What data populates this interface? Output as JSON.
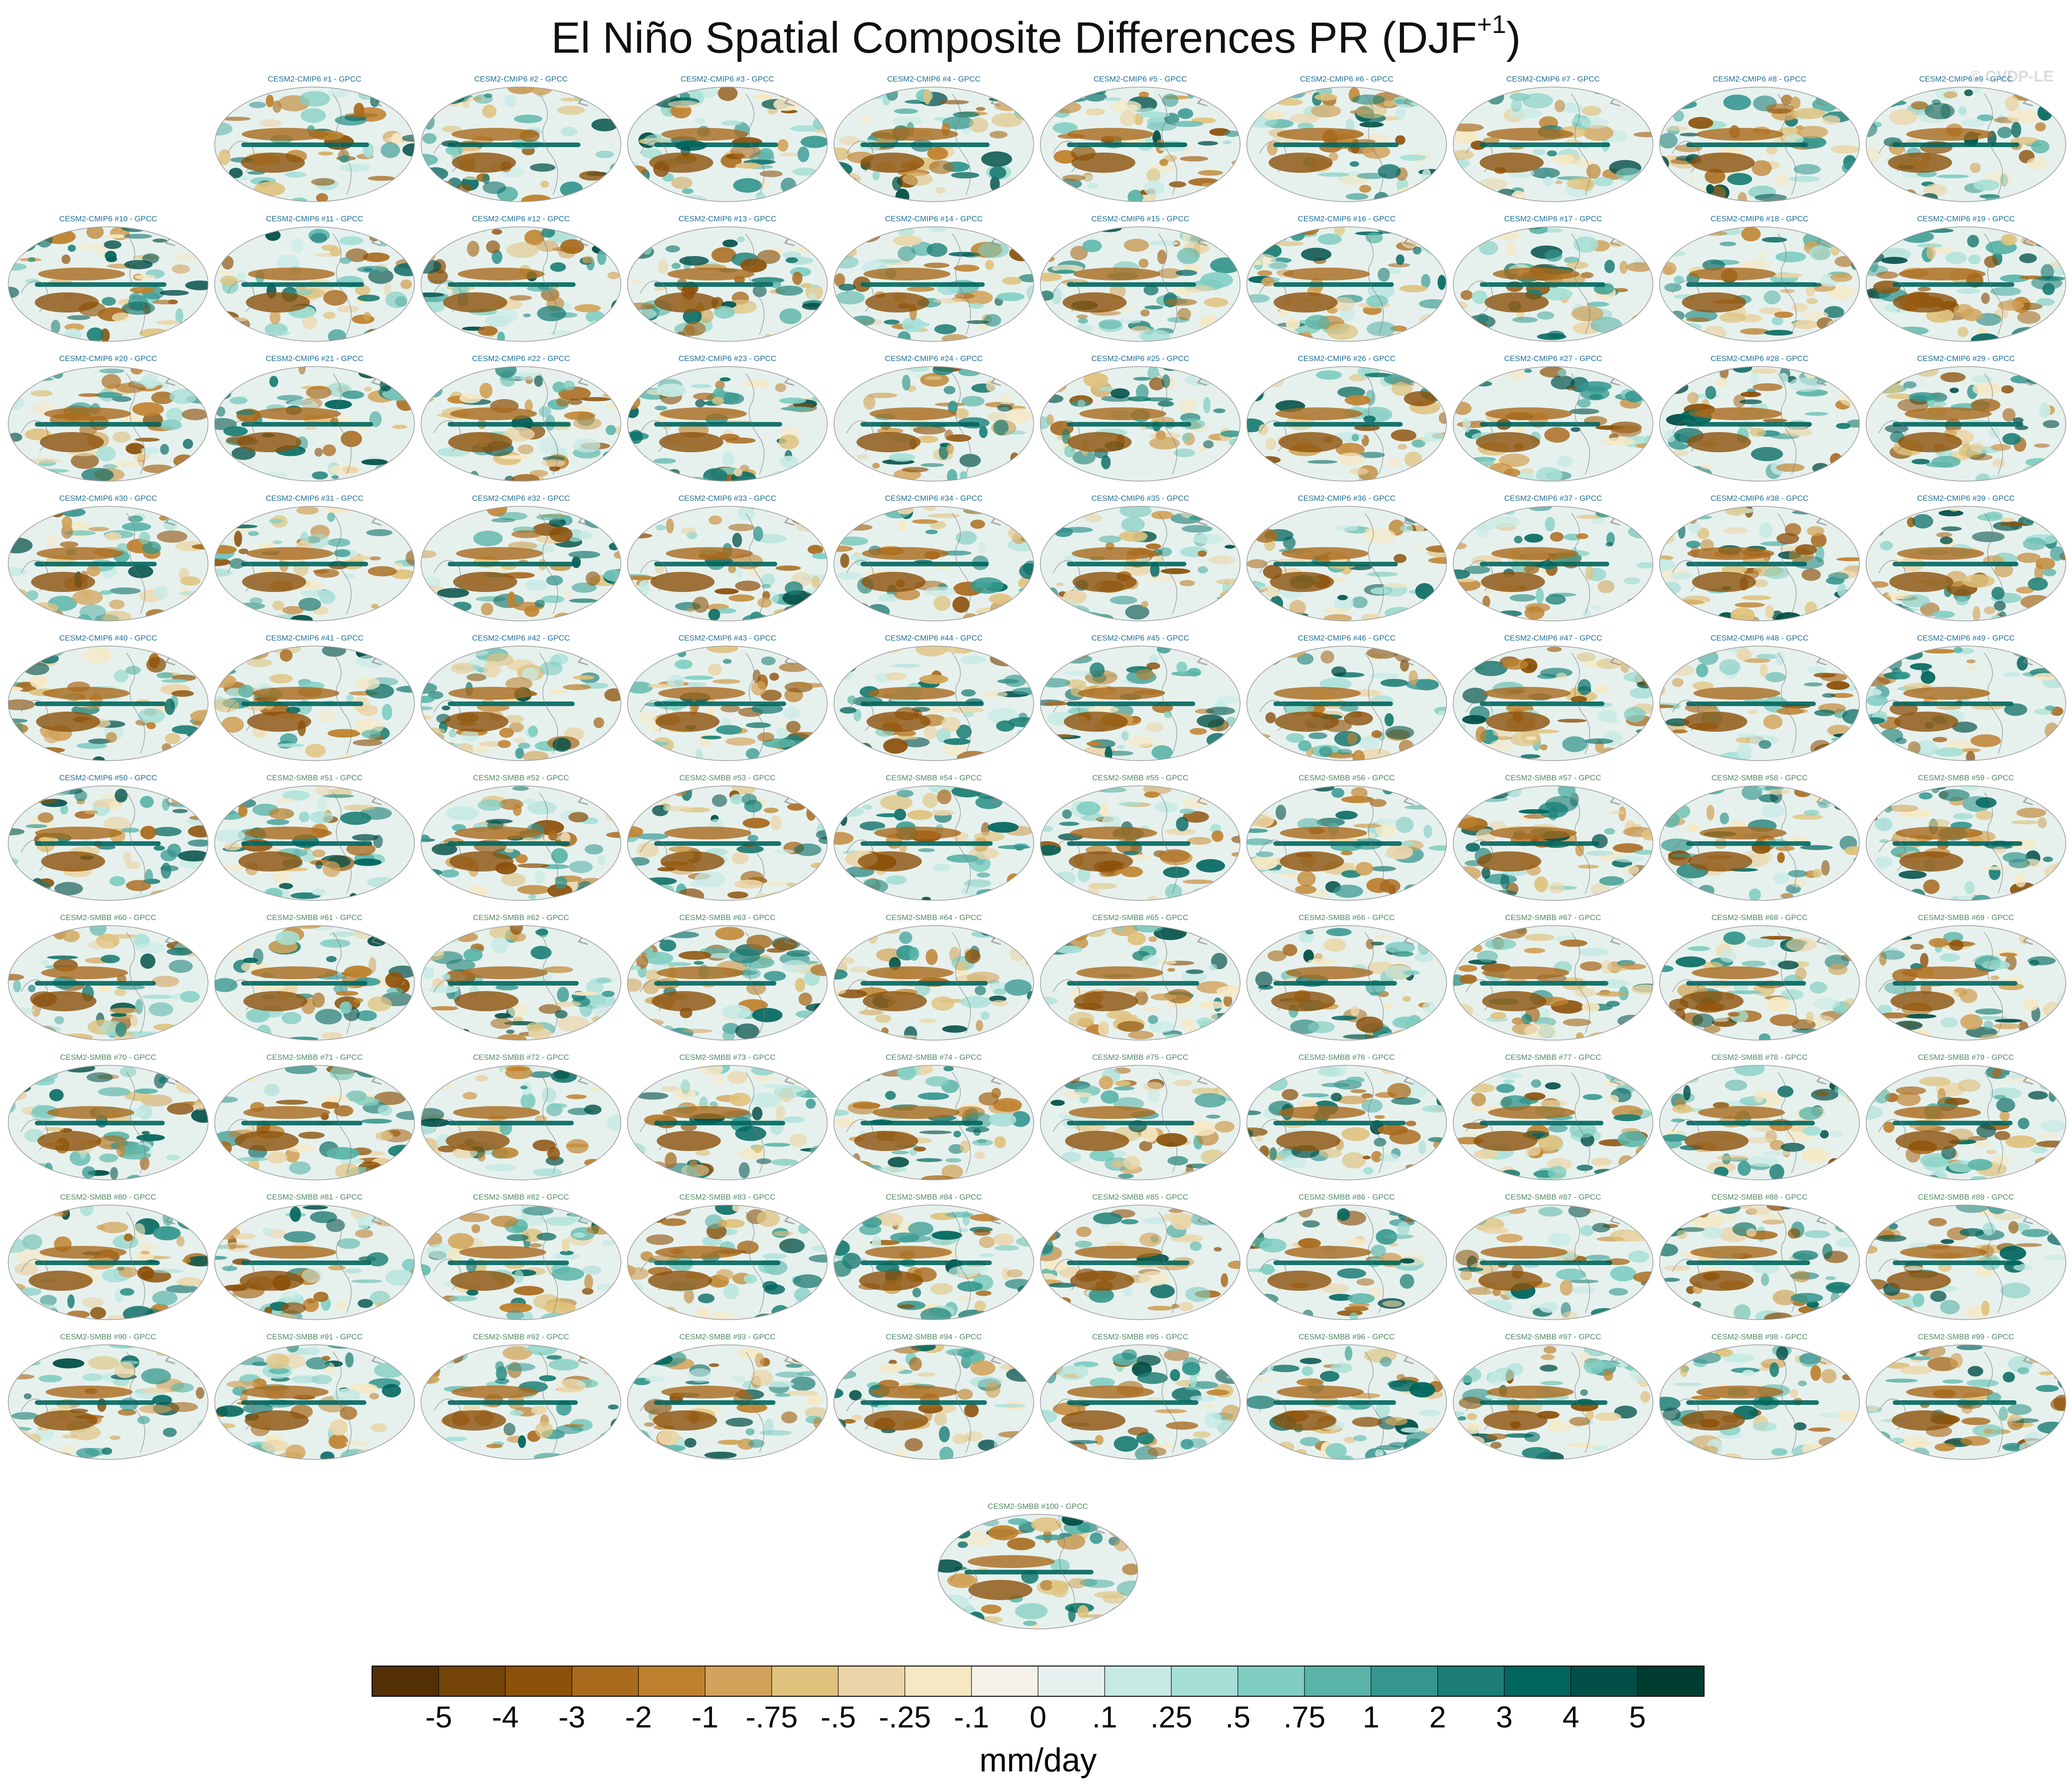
{
  "title_main": "El Niño Spatial Composite Differences PR (DJF",
  "title_sup": "+1",
  "title_close": ")",
  "watermark": "© CVDP-LE",
  "colors": {
    "palette": [
      "#543005",
      "#744409",
      "#8c510a",
      "#a96a1d",
      "#bf812d",
      "#d2a35a",
      "#dfc27d",
      "#ebd5a8",
      "#f6e8c3",
      "#f5f1e8",
      "#e6f1ef",
      "#c7eae5",
      "#a6dfd6",
      "#80cdc1",
      "#5ab4a8",
      "#35978f",
      "#1c7e75",
      "#01665e",
      "#014f47",
      "#003c30"
    ],
    "cmip6_label": "#1f6f97",
    "smbb_label": "#4f8a63",
    "land": "#f6f2e8",
    "ocean": "#e6f1ee",
    "coast": "#777777"
  },
  "chart_data": {
    "type": "heatmap",
    "panel_titles": [
      "CESM2-CMIP6 #1 - GPCC",
      "CESM2-CMIP6 #2 - GPCC",
      "CESM2-CMIP6 #3 - GPCC",
      "CESM2-CMIP6 #4 - GPCC",
      "CESM2-CMIP6 #5 - GPCC",
      "CESM2-CMIP6 #6 - GPCC",
      "CESM2-CMIP6 #7 - GPCC",
      "CESM2-CMIP6 #8 - GPCC",
      "CESM2-CMIP6 #9 - GPCC",
      "CESM2-CMIP6 #10 - GPCC",
      "CESM2-CMIP6 #11 - GPCC",
      "CESM2-CMIP6 #12 - GPCC",
      "CESM2-CMIP6 #13 - GPCC",
      "CESM2-CMIP6 #14 - GPCC",
      "CESM2-CMIP6 #15 - GPCC",
      "CESM2-CMIP6 #16 - GPCC",
      "CESM2-CMIP6 #17 - GPCC",
      "CESM2-CMIP6 #18 - GPCC",
      "CESM2-CMIP6 #19 - GPCC",
      "CESM2-CMIP6 #20 - GPCC",
      "CESM2-CMIP6 #21 - GPCC",
      "CESM2-CMIP6 #22 - GPCC",
      "CESM2-CMIP6 #23 - GPCC",
      "CESM2-CMIP6 #24 - GPCC",
      "CESM2-CMIP6 #25 - GPCC",
      "CESM2-CMIP6 #26 - GPCC",
      "CESM2-CMIP6 #27 - GPCC",
      "CESM2-CMIP6 #28 - GPCC",
      "CESM2-CMIP6 #29 - GPCC",
      "CESM2-CMIP6 #30 - GPCC",
      "CESM2-CMIP6 #31 - GPCC",
      "CESM2-CMIP6 #32 - GPCC",
      "CESM2-CMIP6 #33 - GPCC",
      "CESM2-CMIP6 #34 - GPCC",
      "CESM2-CMIP6 #35 - GPCC",
      "CESM2-CMIP6 #36 - GPCC",
      "CESM2-CMIP6 #37 - GPCC",
      "CESM2-CMIP6 #38 - GPCC",
      "CESM2-CMIP6 #39 - GPCC",
      "CESM2-CMIP6 #40 - GPCC",
      "CESM2-CMIP6 #41 - GPCC",
      "CESM2-CMIP6 #42 - GPCC",
      "CESM2-CMIP6 #43 - GPCC",
      "CESM2-CMIP6 #44 - GPCC",
      "CESM2-CMIP6 #45 - GPCC",
      "CESM2-CMIP6 #46 - GPCC",
      "CESM2-CMIP6 #47 - GPCC",
      "CESM2-CMIP6 #48 - GPCC",
      "CESM2-CMIP6 #49 - GPCC",
      "CESM2-CMIP6 #50 - GPCC",
      "CESM2-SMBB #51 - GPCC",
      "CESM2-SMBB #52 - GPCC",
      "CESM2-SMBB #53 - GPCC",
      "CESM2-SMBB #54 - GPCC",
      "CESM2-SMBB #55 - GPCC",
      "CESM2-SMBB #56 - GPCC",
      "CESM2-SMBB #57 - GPCC",
      "CESM2-SMBB #58 - GPCC",
      "CESM2-SMBB #59 - GPCC",
      "CESM2-SMBB #60 - GPCC",
      "CESM2-SMBB #61 - GPCC",
      "CESM2-SMBB #62 - GPCC",
      "CESM2-SMBB #63 - GPCC",
      "CESM2-SMBB #64 - GPCC",
      "CESM2-SMBB #65 - GPCC",
      "CESM2-SMBB #66 - GPCC",
      "CESM2-SMBB #67 - GPCC",
      "CESM2-SMBB #68 - GPCC",
      "CESM2-SMBB #69 - GPCC",
      "CESM2-SMBB #70 - GPCC",
      "CESM2-SMBB #71 - GPCC",
      "CESM2-SMBB #72 - GPCC",
      "CESM2-SMBB #73 - GPCC",
      "CESM2-SMBB #74 - GPCC",
      "CESM2-SMBB #75 - GPCC",
      "CESM2-SMBB #76 - GPCC",
      "CESM2-SMBB #77 - GPCC",
      "CESM2-SMBB #78 - GPCC",
      "CESM2-SMBB #79 - GPCC",
      "CESM2-SMBB #80 - GPCC",
      "CESM2-SMBB #81 - GPCC",
      "CESM2-SMBB #82 - GPCC",
      "CESM2-SMBB #83 - GPCC",
      "CESM2-SMBB #84 - GPCC",
      "CESM2-SMBB #85 - GPCC",
      "CESM2-SMBB #86 - GPCC",
      "CESM2-SMBB #87 - GPCC",
      "CESM2-SMBB #88 - GPCC",
      "CESM2-SMBB #89 - GPCC",
      "CESM2-SMBB #90 - GPCC",
      "CESM2-SMBB #91 - GPCC",
      "CESM2-SMBB #92 - GPCC",
      "CESM2-SMBB #93 - GPCC",
      "CESM2-SMBB #94 - GPCC",
      "CESM2-SMBB #95 - GPCC",
      "CESM2-SMBB #96 - GPCC",
      "CESM2-SMBB #97 - GPCC",
      "CESM2-SMBB #98 - GPCC",
      "CESM2-SMBB #99 - GPCC",
      "CESM2-SMBB #100 - GPCC"
    ],
    "colorbar": {
      "levels": [
        "-5",
        "-4",
        "-3",
        "-2",
        "-1",
        "-.75",
        "-.5",
        "-.25",
        "-.1",
        "0",
        ".1",
        ".25",
        ".5",
        ".75",
        "1",
        "2",
        "3",
        "4",
        "5"
      ],
      "label": "mm/day"
    }
  }
}
